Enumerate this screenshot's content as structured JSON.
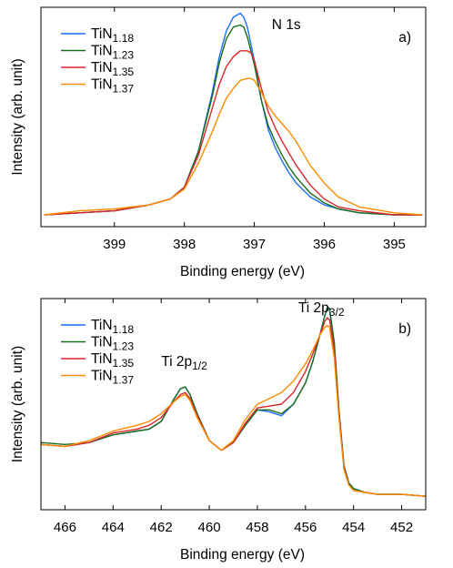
{
  "chart_data": [
    {
      "type": "line",
      "panel_label": "a)",
      "annotations": [
        {
          "text": "N 1s",
          "x": 396.75,
          "y": 0.94
        }
      ],
      "xlabel": "Binding energy (eV)",
      "ylabel": "Intensity (arb. unit)",
      "xlim": [
        400.05,
        394.55
      ],
      "ylim": [
        -0.06,
        1.05
      ],
      "x_reversed": true,
      "xticks": [
        399,
        398,
        397,
        396,
        395
      ],
      "y_ticks_shown": false,
      "legend_position": "top-left",
      "series": [
        {
          "name": "TiN",
          "subscript": "1.18",
          "color": "#1f6fff",
          "x": [
            400.0,
            399.5,
            399.0,
            398.5,
            398.2,
            398.0,
            397.8,
            397.6,
            397.5,
            397.4,
            397.3,
            397.2,
            397.15,
            397.1,
            397.0,
            396.9,
            396.8,
            396.7,
            396.6,
            396.5,
            396.4,
            396.2,
            396.0,
            395.8,
            395.5,
            395.0,
            394.6
          ],
          "y": [
            0.0,
            0.01,
            0.02,
            0.05,
            0.08,
            0.14,
            0.32,
            0.62,
            0.8,
            0.93,
            1.0,
            1.02,
            1.0,
            0.95,
            0.78,
            0.58,
            0.43,
            0.34,
            0.27,
            0.21,
            0.16,
            0.09,
            0.05,
            0.03,
            0.01,
            0.0,
            0.0
          ]
        },
        {
          "name": "TiN",
          "subscript": "1.23",
          "color": "#1a6b1a",
          "x": [
            400.0,
            399.5,
            399.0,
            398.5,
            398.2,
            398.0,
            397.8,
            397.6,
            397.5,
            397.4,
            397.3,
            397.2,
            397.15,
            397.1,
            397.0,
            396.9,
            396.8,
            396.7,
            396.6,
            396.5,
            396.4,
            396.2,
            396.0,
            395.8,
            395.5,
            395.0,
            394.6
          ],
          "y": [
            0.0,
            0.01,
            0.02,
            0.05,
            0.08,
            0.14,
            0.32,
            0.6,
            0.77,
            0.89,
            0.95,
            0.96,
            0.95,
            0.9,
            0.76,
            0.58,
            0.45,
            0.37,
            0.3,
            0.24,
            0.19,
            0.11,
            0.06,
            0.03,
            0.01,
            0.0,
            0.0
          ]
        },
        {
          "name": "TiN",
          "subscript": "1.35",
          "color": "#d62728",
          "x": [
            400.0,
            399.5,
            399.0,
            398.5,
            398.2,
            398.0,
            397.8,
            397.6,
            397.5,
            397.4,
            397.3,
            397.2,
            397.1,
            397.05,
            397.0,
            396.9,
            396.8,
            396.7,
            396.6,
            396.5,
            396.4,
            396.2,
            396.0,
            395.8,
            395.5,
            395.0,
            394.6
          ],
          "y": [
            0.0,
            0.01,
            0.02,
            0.05,
            0.08,
            0.14,
            0.3,
            0.54,
            0.66,
            0.75,
            0.8,
            0.83,
            0.83,
            0.82,
            0.78,
            0.64,
            0.52,
            0.44,
            0.37,
            0.31,
            0.25,
            0.15,
            0.08,
            0.04,
            0.02,
            0.0,
            0.0
          ]
        },
        {
          "name": "TiN",
          "subscript": "1.37",
          "color": "#ff8c00",
          "x": [
            400.0,
            399.5,
            399.0,
            398.5,
            398.2,
            398.0,
            397.8,
            397.6,
            397.5,
            397.4,
            397.3,
            397.2,
            397.1,
            397.05,
            397.0,
            396.9,
            396.8,
            396.7,
            396.6,
            396.5,
            396.4,
            396.3,
            396.2,
            396.0,
            395.8,
            395.5,
            395.0,
            394.6
          ],
          "y": [
            0.0,
            0.02,
            0.03,
            0.05,
            0.08,
            0.13,
            0.26,
            0.42,
            0.51,
            0.59,
            0.64,
            0.68,
            0.69,
            0.69,
            0.68,
            0.62,
            0.55,
            0.5,
            0.46,
            0.42,
            0.37,
            0.31,
            0.25,
            0.16,
            0.09,
            0.04,
            0.01,
            0.0
          ]
        }
      ]
    },
    {
      "type": "line",
      "panel_label": "b)",
      "annotations": [
        {
          "text": "Ti 2p",
          "subscript": "3/2",
          "x": 456.3,
          "y": 0.98
        },
        {
          "text": "Ti 2p",
          "subscript": "1/2",
          "x": 462.0,
          "y": 0.7
        }
      ],
      "xlabel": "Binding energy (eV)",
      "ylabel": "Intensity (arb. unit)",
      "xlim": [
        467.0,
        451.0
      ],
      "ylim": [
        -0.05,
        1.05
      ],
      "x_reversed": true,
      "xticks": [
        466,
        464,
        462,
        460,
        458,
        456,
        454,
        452
      ],
      "y_ticks_shown": false,
      "legend_position": "top-left",
      "series": [
        {
          "name": "TiN",
          "subscript": "1.18",
          "color": "#1f6fff",
          "x": [
            467,
            466,
            465,
            464,
            463,
            462.5,
            462,
            461.5,
            461.2,
            461.0,
            460.8,
            460.5,
            460.0,
            459.5,
            459.0,
            458.5,
            458.0,
            457.5,
            457.0,
            456.5,
            456.0,
            455.7,
            455.4,
            455.2,
            455.1,
            455.0,
            454.8,
            454.6,
            454.4,
            454.2,
            454.0,
            453.5,
            453.0,
            452.0,
            451.0
          ],
          "y": [
            0.29,
            0.28,
            0.3,
            0.34,
            0.36,
            0.37,
            0.41,
            0.52,
            0.58,
            0.59,
            0.55,
            0.45,
            0.31,
            0.26,
            0.3,
            0.39,
            0.47,
            0.46,
            0.44,
            0.5,
            0.61,
            0.72,
            0.86,
            0.96,
            1.0,
            0.99,
            0.8,
            0.45,
            0.18,
            0.09,
            0.06,
            0.04,
            0.03,
            0.03,
            0.02
          ]
        },
        {
          "name": "TiN",
          "subscript": "1.23",
          "color": "#1a6b1a",
          "x": [
            467,
            466,
            465,
            464,
            463,
            462.5,
            462,
            461.5,
            461.2,
            461.0,
            460.8,
            460.5,
            460.0,
            459.5,
            459.0,
            458.5,
            458.0,
            457.5,
            457.0,
            456.5,
            456.0,
            455.7,
            455.4,
            455.2,
            455.1,
            455.0,
            454.8,
            454.6,
            454.4,
            454.2,
            454.0,
            453.5,
            453.0,
            452.0,
            451.0
          ],
          "y": [
            0.3,
            0.29,
            0.3,
            0.34,
            0.36,
            0.37,
            0.41,
            0.52,
            0.58,
            0.59,
            0.55,
            0.45,
            0.31,
            0.26,
            0.3,
            0.39,
            0.47,
            0.47,
            0.45,
            0.5,
            0.61,
            0.72,
            0.86,
            0.96,
            1.0,
            1.0,
            0.82,
            0.46,
            0.18,
            0.09,
            0.06,
            0.04,
            0.03,
            0.03,
            0.02
          ]
        },
        {
          "name": "TiN",
          "subscript": "1.35",
          "color": "#d62728",
          "x": [
            467,
            466,
            465,
            464,
            463,
            462.5,
            462,
            461.5,
            461.2,
            461.0,
            460.8,
            460.5,
            460.0,
            459.5,
            459.0,
            458.5,
            458.0,
            457.5,
            457.0,
            456.5,
            456.0,
            455.7,
            455.4,
            455.2,
            455.1,
            455.0,
            454.8,
            454.6,
            454.4,
            454.2,
            454.0,
            453.5,
            453.0,
            452.0,
            451.0
          ],
          "y": [
            0.29,
            0.28,
            0.3,
            0.35,
            0.37,
            0.39,
            0.43,
            0.51,
            0.55,
            0.56,
            0.53,
            0.44,
            0.31,
            0.26,
            0.3,
            0.4,
            0.48,
            0.49,
            0.5,
            0.56,
            0.67,
            0.76,
            0.86,
            0.93,
            0.95,
            0.94,
            0.78,
            0.44,
            0.17,
            0.08,
            0.05,
            0.04,
            0.03,
            0.03,
            0.02
          ]
        },
        {
          "name": "TiN",
          "subscript": "1.37",
          "color": "#ff8c00",
          "x": [
            467,
            466,
            465,
            464,
            463,
            462.5,
            462,
            461.5,
            461.2,
            461.0,
            460.8,
            460.5,
            460.0,
            459.5,
            459.0,
            458.5,
            458.0,
            457.5,
            457.0,
            456.5,
            456.0,
            455.7,
            455.4,
            455.2,
            455.1,
            455.0,
            454.8,
            454.6,
            454.4,
            454.2,
            454.0,
            453.5,
            453.0,
            452.0,
            451.0
          ],
          "y": [
            0.29,
            0.28,
            0.31,
            0.36,
            0.39,
            0.41,
            0.45,
            0.51,
            0.54,
            0.55,
            0.52,
            0.43,
            0.31,
            0.26,
            0.31,
            0.42,
            0.5,
            0.53,
            0.56,
            0.62,
            0.71,
            0.78,
            0.86,
            0.9,
            0.91,
            0.9,
            0.74,
            0.42,
            0.16,
            0.08,
            0.05,
            0.04,
            0.03,
            0.03,
            0.02
          ]
        }
      ]
    }
  ]
}
